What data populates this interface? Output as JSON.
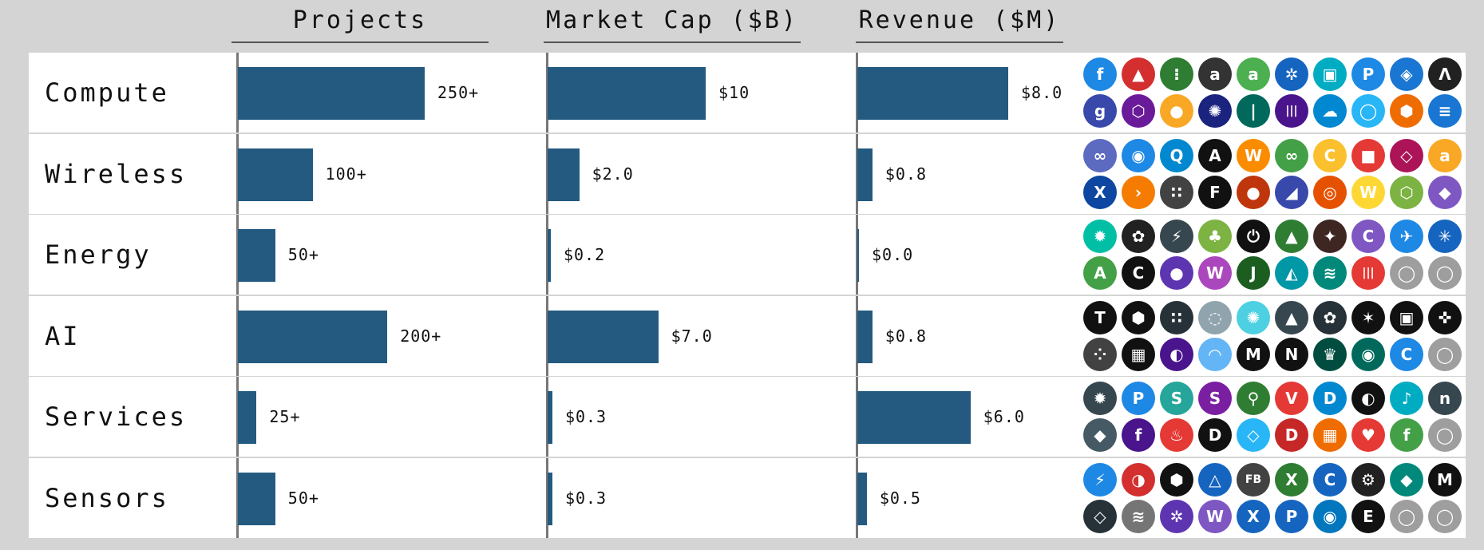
{
  "headers": {
    "projects": "Projects",
    "market_cap": "Market Cap ($B)",
    "revenue": "Revenue ($M)"
  },
  "colors": {
    "bar": "#245a80",
    "background": "#d4d4d4",
    "row": "#ffffff"
  },
  "chart_data": {
    "type": "bar",
    "categories": [
      "Compute",
      "Wireless",
      "Energy",
      "AI",
      "Services",
      "Sensors"
    ],
    "series": [
      {
        "name": "Projects",
        "values": [
          250,
          100,
          50,
          200,
          25,
          50
        ],
        "labels": [
          "250+",
          "100+",
          "50+",
          "200+",
          "25+",
          "50+"
        ],
        "max": 250
      },
      {
        "name": "Market Cap ($B)",
        "values": [
          10,
          2.0,
          0.2,
          7.0,
          0.3,
          0.3
        ],
        "labels": [
          "$10",
          "$2.0",
          "$0.2",
          "$7.0",
          "$0.3",
          "$0.3"
        ],
        "max": 10
      },
      {
        "name": "Revenue ($M)",
        "values": [
          8.0,
          0.8,
          0.0,
          0.8,
          6.0,
          0.5
        ],
        "labels": [
          "$8.0",
          "$0.8",
          "$0.0",
          "$0.8",
          "$6.0",
          "$0.5"
        ],
        "max": 8
      }
    ]
  },
  "logos": {
    "Compute": [
      {
        "t": "f",
        "c": "#1e88e5"
      },
      {
        "t": "▲",
        "c": "#d32f2f"
      },
      {
        "t": "⁝",
        "c": "#2e7d32"
      },
      {
        "t": "a",
        "c": "#333"
      },
      {
        "t": "a",
        "c": "#4caf50"
      },
      {
        "t": "✲",
        "c": "#1565c0"
      },
      {
        "t": "▣",
        "c": "#00acc1"
      },
      {
        "t": "P",
        "c": "#1e88e5"
      },
      {
        "t": "◈",
        "c": "#1976d2"
      },
      {
        "t": "Λ",
        "c": "#212121"
      },
      {
        "t": "g",
        "c": "#3949ab"
      },
      {
        "t": "⬡",
        "c": "#6a1b9a"
      },
      {
        "t": "●",
        "c": "#f9a825"
      },
      {
        "t": "✺",
        "c": "#1a237e"
      },
      {
        "t": "|",
        "c": "#00695c"
      },
      {
        "t": "|||",
        "c": "#4a148c"
      },
      {
        "t": "☁",
        "c": "#0288d1"
      },
      {
        "t": "◯",
        "c": "#29b6f6"
      },
      {
        "t": "⬢",
        "c": "#ef6c00"
      },
      {
        "t": "≡",
        "c": "#1976d2"
      }
    ],
    "Wireless": [
      {
        "t": "∞",
        "c": "#5c6bc0"
      },
      {
        "t": "◉",
        "c": "#1e88e5"
      },
      {
        "t": "Q",
        "c": "#0288d1"
      },
      {
        "t": "A",
        "c": "#111"
      },
      {
        "t": "W",
        "c": "#fb8c00"
      },
      {
        "t": "∞",
        "c": "#43a047"
      },
      {
        "t": "C",
        "c": "#fbc02d"
      },
      {
        "t": "■",
        "c": "#e53935"
      },
      {
        "t": "◇",
        "c": "#ad1457"
      },
      {
        "t": "a",
        "c": "#f9a825"
      },
      {
        "t": "X",
        "c": "#0d47a1"
      },
      {
        "t": "›",
        "c": "#f57c00"
      },
      {
        "t": "∷",
        "c": "#424242"
      },
      {
        "t": "F",
        "c": "#111"
      },
      {
        "t": "●",
        "c": "#bf360c"
      },
      {
        "t": "◢",
        "c": "#3949ab"
      },
      {
        "t": "◎",
        "c": "#e65100"
      },
      {
        "t": "W",
        "c": "#fdd835"
      },
      {
        "t": "⬡",
        "c": "#7cb342"
      },
      {
        "t": "◆",
        "c": "#7e57c2"
      }
    ],
    "Energy": [
      {
        "t": "✹",
        "c": "#00bfa5"
      },
      {
        "t": "✿",
        "c": "#212121"
      },
      {
        "t": "⚡",
        "c": "#37474f"
      },
      {
        "t": "♣",
        "c": "#7cb342"
      },
      {
        "t": "⏻",
        "c": "#111"
      },
      {
        "t": "▲",
        "c": "#2e7d32"
      },
      {
        "t": "✦",
        "c": "#3e2723"
      },
      {
        "t": "C",
        "c": "#7e57c2"
      },
      {
        "t": "✈",
        "c": "#1e88e5"
      },
      {
        "t": "✳",
        "c": "#1565c0"
      },
      {
        "t": "A",
        "c": "#43a047"
      },
      {
        "t": "C",
        "c": "#111"
      },
      {
        "t": "●",
        "c": "#5e35b1"
      },
      {
        "t": "W",
        "c": "#ab47bc"
      },
      {
        "t": "J",
        "c": "#1b5e20"
      },
      {
        "t": "◭",
        "c": "#0097a7"
      },
      {
        "t": "≋",
        "c": "#00897b"
      },
      {
        "t": "|||",
        "c": "#e53935"
      },
      {
        "t": "◯",
        "c": "#9e9e9e"
      },
      {
        "t": "◯",
        "c": "#9e9e9e"
      }
    ],
    "AI": [
      {
        "t": "T",
        "c": "#111"
      },
      {
        "t": "⬢",
        "c": "#111"
      },
      {
        "t": "∷",
        "c": "#263238"
      },
      {
        "t": "◌",
        "c": "#90a4ae"
      },
      {
        "t": "✺",
        "c": "#4dd0e1"
      },
      {
        "t": "▲",
        "c": "#37474f"
      },
      {
        "t": "✿",
        "c": "#263238"
      },
      {
        "t": "✶",
        "c": "#111"
      },
      {
        "t": "▣",
        "c": "#111"
      },
      {
        "t": "✜",
        "c": "#111"
      },
      {
        "t": "⁘",
        "c": "#424242"
      },
      {
        "t": "▦",
        "c": "#111"
      },
      {
        "t": "◐",
        "c": "#4a148c"
      },
      {
        "t": "◠",
        "c": "#64b5f6"
      },
      {
        "t": "M",
        "c": "#111"
      },
      {
        "t": "N",
        "c": "#111"
      },
      {
        "t": "♛",
        "c": "#004d40"
      },
      {
        "t": "◉",
        "c": "#00695c"
      },
      {
        "t": "C",
        "c": "#1e88e5"
      },
      {
        "t": "◯",
        "c": "#9e9e9e"
      }
    ],
    "Services": [
      {
        "t": "✹",
        "c": "#37474f"
      },
      {
        "t": "P",
        "c": "#1e88e5"
      },
      {
        "t": "S",
        "c": "#26a69a"
      },
      {
        "t": "S",
        "c": "#7b1fa2"
      },
      {
        "t": "⚲",
        "c": "#2e7d32"
      },
      {
        "t": "V",
        "c": "#e53935"
      },
      {
        "t": "D",
        "c": "#0288d1"
      },
      {
        "t": "◐",
        "c": "#111"
      },
      {
        "t": "♪",
        "c": "#00acc1"
      },
      {
        "t": "n",
        "c": "#37474f"
      },
      {
        "t": "◆",
        "c": "#455a64"
      },
      {
        "t": "f",
        "c": "#4a148c"
      },
      {
        "t": "♨",
        "c": "#e53935"
      },
      {
        "t": "D",
        "c": "#111"
      },
      {
        "t": "◇",
        "c": "#29b6f6"
      },
      {
        "t": "D",
        "c": "#c62828"
      },
      {
        "t": "▦",
        "c": "#ef6c00"
      },
      {
        "t": "♥",
        "c": "#e53935"
      },
      {
        "t": "f",
        "c": "#43a047"
      },
      {
        "t": "◯",
        "c": "#9e9e9e"
      }
    ],
    "Sensors": [
      {
        "t": "⚡",
        "c": "#1e88e5"
      },
      {
        "t": "◑",
        "c": "#d32f2f"
      },
      {
        "t": "⬢",
        "c": "#111"
      },
      {
        "t": "△",
        "c": "#1565c0"
      },
      {
        "t": "FB",
        "c": "#424242"
      },
      {
        "t": "X",
        "c": "#2e7d32"
      },
      {
        "t": "C",
        "c": "#1565c0"
      },
      {
        "t": "⚙",
        "c": "#212121"
      },
      {
        "t": "◆",
        "c": "#00897b"
      },
      {
        "t": "M",
        "c": "#111"
      },
      {
        "t": "◇",
        "c": "#263238"
      },
      {
        "t": "≋",
        "c": "#757575"
      },
      {
        "t": "✲",
        "c": "#5e35b1"
      },
      {
        "t": "W",
        "c": "#7e57c2"
      },
      {
        "t": "X",
        "c": "#1565c0"
      },
      {
        "t": "P",
        "c": "#1565c0"
      },
      {
        "t": "◉",
        "c": "#0277bd"
      },
      {
        "t": "E",
        "c": "#111"
      },
      {
        "t": "◯",
        "c": "#9e9e9e"
      },
      {
        "t": "◯",
        "c": "#9e9e9e"
      }
    ]
  }
}
